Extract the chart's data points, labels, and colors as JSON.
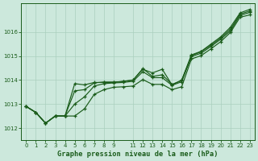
{
  "title": "Graphe pression niveau de la mer (hPa)",
  "background_color": "#cce8dc",
  "grid_color": "#aacfbe",
  "line_color": "#1a5c1a",
  "xlim": [
    -0.5,
    23.5
  ],
  "ylim": [
    1011.5,
    1017.2
  ],
  "yticks": [
    1012,
    1013,
    1014,
    1015,
    1016
  ],
  "xtick_positions": [
    0,
    1,
    2,
    3,
    4,
    5,
    6,
    7,
    8,
    9,
    11,
    12,
    13,
    14,
    15,
    16,
    17,
    18,
    19,
    20,
    21,
    22,
    23
  ],
  "xtick_labels": [
    "0",
    "1",
    "2",
    "3",
    "4",
    "5",
    "6",
    "7",
    "8",
    "9",
    "11",
    "12",
    "13",
    "14",
    "15",
    "16",
    "17",
    "18",
    "19",
    "20",
    "21",
    "22",
    "23"
  ],
  "series": [
    [
      1012.9,
      1012.65,
      1012.2,
      1012.5,
      1012.5,
      1013.85,
      1013.8,
      1013.9,
      1013.9,
      1013.9,
      1013.95,
      1014.0,
      1014.45,
      1014.3,
      1014.45,
      1013.8,
      1014.0,
      1015.05,
      1015.2,
      1015.5,
      1015.8,
      1016.2,
      1016.8,
      1016.95
    ],
    [
      1012.9,
      1012.65,
      1012.2,
      1012.5,
      1012.5,
      1013.55,
      1013.6,
      1013.88,
      1013.92,
      1013.92,
      1013.94,
      1014.0,
      1014.48,
      1014.15,
      1014.22,
      1013.82,
      1013.98,
      1015.02,
      1015.18,
      1015.45,
      1015.75,
      1016.12,
      1016.75,
      1016.88
    ],
    [
      1012.9,
      1012.65,
      1012.2,
      1012.5,
      1012.5,
      1013.0,
      1013.3,
      1013.75,
      1013.85,
      1013.88,
      1013.9,
      1013.95,
      1014.35,
      1014.1,
      1014.1,
      1013.78,
      1013.93,
      1014.98,
      1015.12,
      1015.4,
      1015.7,
      1016.05,
      1016.7,
      1016.82
    ],
    [
      1012.9,
      1012.65,
      1012.2,
      1012.5,
      1012.5,
      1012.5,
      1012.8,
      1013.4,
      1013.6,
      1013.7,
      1013.72,
      1013.75,
      1014.02,
      1013.82,
      1013.82,
      1013.6,
      1013.72,
      1014.88,
      1015.02,
      1015.3,
      1015.6,
      1015.98,
      1016.62,
      1016.72
    ]
  ]
}
